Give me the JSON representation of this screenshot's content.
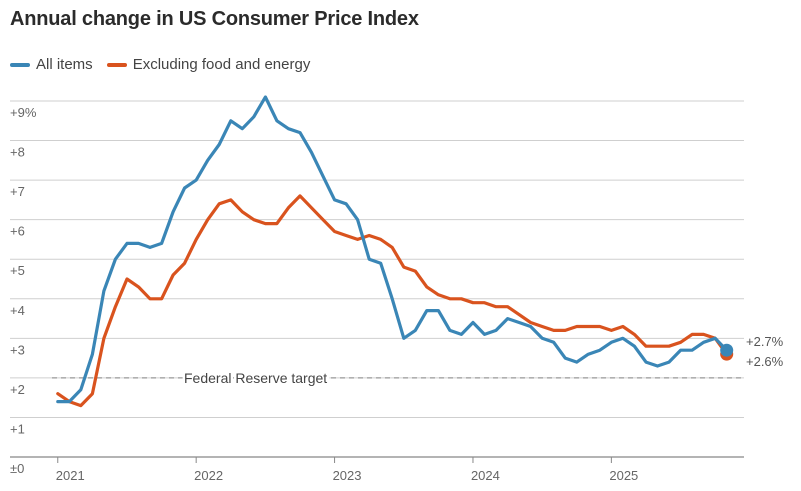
{
  "chart_data": {
    "type": "line",
    "title": "Annual change in US Consumer Price Index",
    "ylim": [
      0,
      9
    ],
    "y_ticks": [
      {
        "value": 0,
        "label": "±0"
      },
      {
        "value": 1,
        "label": "+1"
      },
      {
        "value": 2,
        "label": "+2"
      },
      {
        "value": 3,
        "label": "+3"
      },
      {
        "value": 4,
        "label": "+4"
      },
      {
        "value": 5,
        "label": "+5"
      },
      {
        "value": 6,
        "label": "+6"
      },
      {
        "value": 7,
        "label": "+7"
      },
      {
        "value": 8,
        "label": "+8"
      },
      {
        "value": 9,
        "label": "+9%"
      }
    ],
    "x_ticks": [
      {
        "value": 0,
        "label": "2021"
      },
      {
        "value": 12,
        "label": "2022"
      },
      {
        "value": 24,
        "label": "2023"
      },
      {
        "value": 36,
        "label": "2024"
      },
      {
        "value": 48,
        "label": "2025"
      }
    ],
    "x_range": [
      -0.5,
      59.5
    ],
    "reference_line": {
      "value": 2,
      "label": "Federal Reserve target"
    },
    "series": [
      {
        "name": "All items",
        "color": "#3a86b6",
        "end_label": "+2.7%",
        "x": [
          0,
          1,
          2,
          3,
          4,
          5,
          6,
          7,
          8,
          9,
          10,
          11,
          12,
          13,
          14,
          15,
          16,
          17,
          18,
          19,
          20,
          21,
          22,
          23,
          24,
          25,
          26,
          27,
          28,
          29,
          30,
          31,
          32,
          33,
          34,
          35,
          36,
          37,
          38,
          39,
          40,
          41,
          42,
          43,
          44,
          45,
          46,
          47,
          48,
          49,
          50,
          51,
          52,
          53,
          54,
          55,
          56,
          57,
          58
        ],
        "values": [
          1.4,
          1.4,
          1.7,
          2.6,
          4.2,
          5.0,
          5.4,
          5.4,
          5.3,
          5.4,
          6.2,
          6.8,
          7.0,
          7.5,
          7.9,
          8.5,
          8.3,
          8.6,
          9.1,
          8.5,
          8.3,
          8.2,
          7.7,
          7.1,
          6.5,
          6.4,
          6.0,
          5.0,
          4.9,
          4.0,
          3.0,
          3.2,
          3.7,
          3.7,
          3.2,
          3.1,
          3.4,
          3.1,
          3.2,
          3.5,
          3.4,
          3.3,
          3.0,
          2.9,
          2.5,
          2.4,
          2.6,
          2.7,
          2.9,
          3.0,
          2.8,
          2.4,
          2.3,
          2.4,
          2.7,
          2.7,
          2.9,
          3.0,
          2.7
        ]
      },
      {
        "name": "Excluding food and energy",
        "color": "#d9531e",
        "end_label": "+2.6%",
        "x": [
          0,
          1,
          2,
          3,
          4,
          5,
          6,
          7,
          8,
          9,
          10,
          11,
          12,
          13,
          14,
          15,
          16,
          17,
          18,
          19,
          20,
          21,
          22,
          23,
          24,
          25,
          26,
          27,
          28,
          29,
          30,
          31,
          32,
          33,
          34,
          35,
          36,
          37,
          38,
          39,
          40,
          41,
          42,
          43,
          44,
          45,
          46,
          47,
          48,
          49,
          50,
          51,
          52,
          53,
          54,
          55,
          56,
          57,
          58
        ],
        "values": [
          1.6,
          1.4,
          1.3,
          1.6,
          3.0,
          3.8,
          4.5,
          4.3,
          4.0,
          4.0,
          4.6,
          4.9,
          5.5,
          6.0,
          6.4,
          6.5,
          6.2,
          6.0,
          5.9,
          5.9,
          6.3,
          6.6,
          6.3,
          6.0,
          5.7,
          5.6,
          5.5,
          5.6,
          5.5,
          5.3,
          4.8,
          4.7,
          4.3,
          4.1,
          4.0,
          4.0,
          3.9,
          3.9,
          3.8,
          3.8,
          3.6,
          3.4,
          3.3,
          3.2,
          3.2,
          3.3,
          3.3,
          3.3,
          3.2,
          3.3,
          3.1,
          2.8,
          2.8,
          2.8,
          2.9,
          3.1,
          3.1,
          3.0,
          2.6
        ]
      }
    ]
  }
}
